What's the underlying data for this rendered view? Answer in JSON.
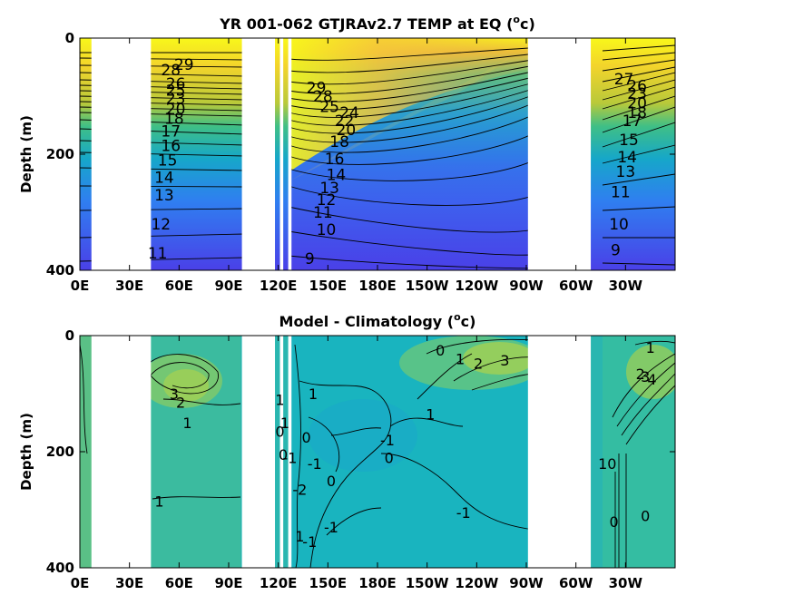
{
  "chart_data": [
    {
      "type": "heatmap",
      "title": "YR 001-062 GTJRAv2.7 TEMP at EQ",
      "title_unit_base": "(",
      "title_unit_sup": "o",
      "title_unit_end": "c)",
      "ylabel": "Depth (m)",
      "xlabel": "",
      "x_ticks": [
        "0E",
        "30E",
        "60E",
        "90E",
        "120E",
        "150E",
        "180E",
        "150W",
        "120W",
        "90W",
        "60W",
        "30W"
      ],
      "x_tick_lon": [
        0,
        30,
        60,
        90,
        120,
        150,
        180,
        210,
        240,
        270,
        300,
        330
      ],
      "y_ticks": [
        "0",
        "200",
        "400"
      ],
      "y_tick_values": [
        0,
        200,
        400
      ],
      "xlim": [
        0,
        360
      ],
      "ylim": [
        400,
        0
      ],
      "land_gaps": [
        [
          7,
          43
        ],
        [
          98,
          118
        ],
        [
          121,
          123
        ],
        [
          126,
          128
        ],
        [
          271,
          309
        ]
      ],
      "contour_labels": [
        {
          "text": "29",
          "lon": 63,
          "depth": 45
        },
        {
          "text": "28",
          "lon": 55,
          "depth": 55
        },
        {
          "text": "26",
          "lon": 58,
          "depth": 78
        },
        {
          "text": "25",
          "lon": 58,
          "depth": 90
        },
        {
          "text": "23",
          "lon": 58,
          "depth": 104
        },
        {
          "text": "20",
          "lon": 58,
          "depth": 122
        },
        {
          "text": "18",
          "lon": 57,
          "depth": 138
        },
        {
          "text": "17",
          "lon": 55,
          "depth": 160
        },
        {
          "text": "16",
          "lon": 55,
          "depth": 185
        },
        {
          "text": "15",
          "lon": 53,
          "depth": 210
        },
        {
          "text": "14",
          "lon": 51,
          "depth": 240
        },
        {
          "text": "13",
          "lon": 51,
          "depth": 270
        },
        {
          "text": "12",
          "lon": 49,
          "depth": 320
        },
        {
          "text": "11",
          "lon": 47,
          "depth": 370
        },
        {
          "text": "29",
          "lon": 143,
          "depth": 85
        },
        {
          "text": "28",
          "lon": 147,
          "depth": 100
        },
        {
          "text": "25",
          "lon": 151,
          "depth": 118
        },
        {
          "text": "24",
          "lon": 163,
          "depth": 128
        },
        {
          "text": "22",
          "lon": 160,
          "depth": 142
        },
        {
          "text": "20",
          "lon": 161,
          "depth": 158
        },
        {
          "text": "18",
          "lon": 157,
          "depth": 178
        },
        {
          "text": "16",
          "lon": 154,
          "depth": 208
        },
        {
          "text": "14",
          "lon": 155,
          "depth": 235
        },
        {
          "text": "13",
          "lon": 151,
          "depth": 258
        },
        {
          "text": "12",
          "lon": 149,
          "depth": 278
        },
        {
          "text": "11",
          "lon": 147,
          "depth": 300
        },
        {
          "text": "10",
          "lon": 149,
          "depth": 330
        },
        {
          "text": "9",
          "lon": 139,
          "depth": 380
        },
        {
          "text": "27",
          "lon": 329,
          "depth": 70
        },
        {
          "text": "26",
          "lon": 337,
          "depth": 82
        },
        {
          "text": "23",
          "lon": 337,
          "depth": 95
        },
        {
          "text": "20",
          "lon": 337,
          "depth": 112
        },
        {
          "text": "18",
          "lon": 337,
          "depth": 128
        },
        {
          "text": "17",
          "lon": 334,
          "depth": 142
        },
        {
          "text": "15",
          "lon": 332,
          "depth": 175
        },
        {
          "text": "14",
          "lon": 331,
          "depth": 205
        },
        {
          "text": "13",
          "lon": 330,
          "depth": 230
        },
        {
          "text": "11",
          "lon": 327,
          "depth": 265
        },
        {
          "text": "10",
          "lon": 326,
          "depth": 320
        },
        {
          "text": "9",
          "lon": 324,
          "depth": 365
        }
      ]
    },
    {
      "type": "heatmap",
      "title": "Model - Climatology",
      "title_unit_base": "(",
      "title_unit_sup": "o",
      "title_unit_end": "c)",
      "ylabel": "Depth (m)",
      "xlabel": "",
      "x_ticks": [
        "0E",
        "30E",
        "60E",
        "90E",
        "120E",
        "150E",
        "180E",
        "150W",
        "120W",
        "90W",
        "60W",
        "30W"
      ],
      "x_tick_lon": [
        0,
        30,
        60,
        90,
        120,
        150,
        180,
        210,
        240,
        270,
        300,
        330
      ],
      "y_ticks": [
        "0",
        "200",
        "400"
      ],
      "y_tick_values": [
        0,
        200,
        400
      ],
      "xlim": [
        0,
        360
      ],
      "ylim": [
        400,
        0
      ],
      "land_gaps": [
        [
          7,
          43
        ],
        [
          98,
          118
        ],
        [
          121,
          123
        ],
        [
          126,
          128
        ],
        [
          271,
          309
        ]
      ],
      "contour_labels": [
        {
          "text": "3",
          "lon": 57,
          "depth": 100
        },
        {
          "text": "2",
          "lon": 61,
          "depth": 115
        },
        {
          "text": "1",
          "lon": 65,
          "depth": 150
        },
        {
          "text": "1",
          "lon": 48,
          "depth": 285
        },
        {
          "text": "1",
          "lon": 121,
          "depth": 110
        },
        {
          "text": "0",
          "lon": 121,
          "depth": 165
        },
        {
          "text": "1",
          "lon": 124,
          "depth": 150
        },
        {
          "text": "0",
          "lon": 123,
          "depth": 205
        },
        {
          "text": "-1",
          "lon": 127,
          "depth": 210
        },
        {
          "text": "0",
          "lon": 137,
          "depth": 175
        },
        {
          "text": "-1",
          "lon": 142,
          "depth": 220
        },
        {
          "text": "-2",
          "lon": 133,
          "depth": 265
        },
        {
          "text": "0",
          "lon": 152,
          "depth": 250
        },
        {
          "text": "1",
          "lon": 141,
          "depth": 100
        },
        {
          "text": "-1",
          "lon": 152,
          "depth": 330
        },
        {
          "text": "-1",
          "lon": 139,
          "depth": 355
        },
        {
          "text": "1",
          "lon": 133,
          "depth": 345
        },
        {
          "text": "-1",
          "lon": 186,
          "depth": 180
        },
        {
          "text": "0",
          "lon": 187,
          "depth": 210
        },
        {
          "text": "1",
          "lon": 212,
          "depth": 135
        },
        {
          "text": "0",
          "lon": 218,
          "depth": 25
        },
        {
          "text": "1",
          "lon": 230,
          "depth": 40
        },
        {
          "text": "2",
          "lon": 241,
          "depth": 48
        },
        {
          "text": "3",
          "lon": 257,
          "depth": 42
        },
        {
          "text": "-1",
          "lon": 232,
          "depth": 305
        },
        {
          "text": "1",
          "lon": 345,
          "depth": 20
        },
        {
          "text": "2",
          "lon": 339,
          "depth": 66
        },
        {
          "text": "3",
          "lon": 342,
          "depth": 70
        },
        {
          "text": "4",
          "lon": 346,
          "depth": 75
        },
        {
          "text": "10",
          "lon": 319,
          "depth": 220
        },
        {
          "text": "0",
          "lon": 323,
          "depth": 320
        },
        {
          "text": "0",
          "lon": 342,
          "depth": 310
        }
      ]
    }
  ]
}
